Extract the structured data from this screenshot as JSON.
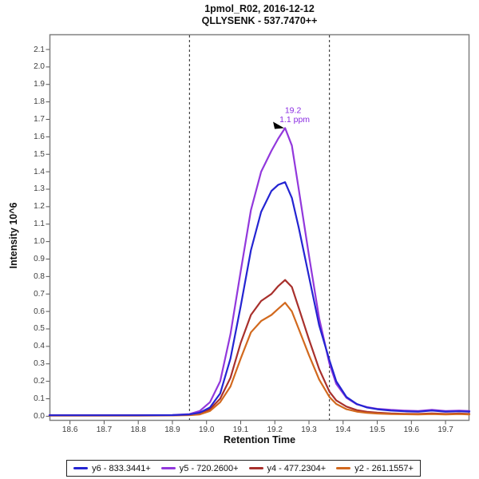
{
  "header": {
    "title_line1": "1pmol_R02, 2016-12-12",
    "title_line2": "QLLYSENK - 537.7470++"
  },
  "chart_data": {
    "type": "line",
    "title": "1pmol_R02, 2016-12-12",
    "subtitle": "QLLYSENK - 537.7470++",
    "xlabel": "Retention Time",
    "ylabel": "Intensity 10^6",
    "xlim": [
      18.54,
      19.77
    ],
    "ylim": [
      -0.026,
      2.187
    ],
    "x_ticks": [
      18.6,
      18.7,
      18.8,
      18.9,
      19.0,
      19.1,
      19.2,
      19.3,
      19.4,
      19.5,
      19.6,
      19.7
    ],
    "y_ticks": [
      0.0,
      0.1,
      0.2,
      0.3,
      0.4,
      0.5,
      0.6,
      0.7,
      0.8,
      0.9,
      1.0,
      1.1,
      1.2,
      1.3,
      1.4,
      1.5,
      1.6,
      1.7,
      1.8,
      1.9,
      2.0,
      2.1
    ],
    "grid": false,
    "legend_position": "bottom",
    "frame_color": "#808080",
    "tick_color": "#555555",
    "peak_boundaries": {
      "color": "#222222",
      "values": [
        18.95,
        19.36
      ]
    },
    "annotation": {
      "rt_label": "19.2",
      "ppm_label": "1.1 ppm",
      "x": 19.23,
      "y": 1.65,
      "text_color": "#8A2BE2",
      "marker_color": "#000000"
    },
    "x": [
      18.54,
      18.6,
      18.7,
      18.8,
      18.9,
      18.95,
      18.98,
      19.01,
      19.04,
      19.07,
      19.1,
      19.13,
      19.16,
      19.19,
      19.21,
      19.23,
      19.25,
      19.27,
      19.3,
      19.33,
      19.36,
      19.38,
      19.41,
      19.44,
      19.47,
      19.5,
      19.54,
      19.58,
      19.62,
      19.66,
      19.7,
      19.74,
      19.77
    ],
    "series": [
      {
        "name": "y6 - 833.3441+",
        "color": "#2424D2",
        "values": [
          0.005,
          0.005,
          0.005,
          0.005,
          0.006,
          0.01,
          0.02,
          0.05,
          0.13,
          0.33,
          0.63,
          0.95,
          1.17,
          1.29,
          1.325,
          1.34,
          1.25,
          1.08,
          0.8,
          0.52,
          0.32,
          0.2,
          0.11,
          0.07,
          0.05,
          0.04,
          0.032,
          0.028,
          0.026,
          0.032,
          0.026,
          0.028,
          0.026
        ]
      },
      {
        "name": "y5 - 720.2600+",
        "color": "#9238DC",
        "values": [
          0.006,
          0.006,
          0.006,
          0.006,
          0.007,
          0.012,
          0.03,
          0.08,
          0.2,
          0.47,
          0.83,
          1.18,
          1.4,
          1.52,
          1.59,
          1.65,
          1.55,
          1.3,
          0.92,
          0.56,
          0.3,
          0.185,
          0.105,
          0.068,
          0.052,
          0.042,
          0.036,
          0.032,
          0.03,
          0.036,
          0.03,
          0.032,
          0.03
        ]
      },
      {
        "name": "y4 - 477.2304+",
        "color": "#A8302C",
        "values": [
          0.004,
          0.004,
          0.004,
          0.004,
          0.005,
          0.008,
          0.015,
          0.04,
          0.1,
          0.22,
          0.42,
          0.58,
          0.66,
          0.7,
          0.745,
          0.78,
          0.74,
          0.62,
          0.44,
          0.27,
          0.14,
          0.09,
          0.055,
          0.035,
          0.025,
          0.02,
          0.016,
          0.014,
          0.013,
          0.016,
          0.013,
          0.015,
          0.013
        ]
      },
      {
        "name": "y2 - 261.1557+",
        "color": "#D2691E",
        "values": [
          0.003,
          0.003,
          0.003,
          0.003,
          0.004,
          0.006,
          0.01,
          0.03,
          0.08,
          0.17,
          0.33,
          0.48,
          0.545,
          0.58,
          0.615,
          0.65,
          0.6,
          0.5,
          0.35,
          0.21,
          0.11,
          0.07,
          0.04,
          0.026,
          0.019,
          0.015,
          0.012,
          0.011,
          0.01,
          0.012,
          0.01,
          0.012,
          0.01
        ]
      }
    ]
  }
}
